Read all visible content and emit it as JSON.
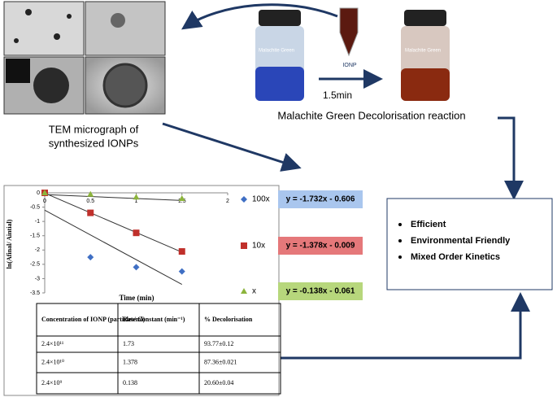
{
  "captions": {
    "tem": [
      "TEM micrograph of",
      "synthesized IONPs"
    ],
    "reaction": "Malachite Green Decolorisation reaction",
    "time": "1.5min",
    "ionp": "IONP",
    "vial": "Malachite Green"
  },
  "bullets": [
    "Efficient",
    "Environmental Friendly",
    "Mixed Order Kinetics"
  ],
  "chart_data": {
    "type": "scatter",
    "x_label": "Time (min)",
    "y_label": "ln(Afinal/ Aintial)",
    "x": [
      0,
      0.5,
      1,
      1.5
    ],
    "xlim": [
      0,
      2
    ],
    "xticks": [
      0,
      0.5,
      1,
      1.5,
      2
    ],
    "ylim": [
      -3.5,
      0
    ],
    "yticks": [
      0,
      -0.5,
      -1,
      -1.5,
      -2,
      -2.5,
      -3,
      -3.5
    ],
    "series": [
      {
        "name": "100x",
        "color": "#3f6fc4",
        "marker": "diamond",
        "values": [
          0,
          -2.25,
          -2.6,
          -2.75
        ],
        "fit": {
          "slope": -1.732,
          "intercept": -0.606,
          "label": "y = -1.732x - 0.606",
          "color": "#a9c6ee"
        }
      },
      {
        "name": "10x",
        "color": "#c0302b",
        "marker": "square",
        "values": [
          0,
          -0.7,
          -1.4,
          -2.05
        ],
        "fit": {
          "slope": -1.378,
          "intercept": -0.009,
          "label": "y = -1.378x - 0.009",
          "color": "#e5787a"
        }
      },
      {
        "name": "x",
        "color": "#8cb43c",
        "marker": "triangle",
        "values": [
          0,
          -0.05,
          -0.15,
          -0.2
        ],
        "fit": {
          "slope": -0.138,
          "intercept": -0.061,
          "label": "y = -0.138x - 0.061",
          "color": "#b7d77c"
        }
      }
    ]
  },
  "table": {
    "header": [
      "Concentration of IONP (particles/ml)",
      "Rate Constant (min⁻¹)",
      "% Decolorisation"
    ],
    "rows": [
      [
        "2.4×10¹¹",
        "1.73",
        "93.77±0.12"
      ],
      [
        "2.4×10¹⁰",
        "1.378",
        "87.36±0.021"
      ],
      [
        "2.4×10⁹",
        "0.138",
        "20.60±0.04"
      ]
    ]
  }
}
